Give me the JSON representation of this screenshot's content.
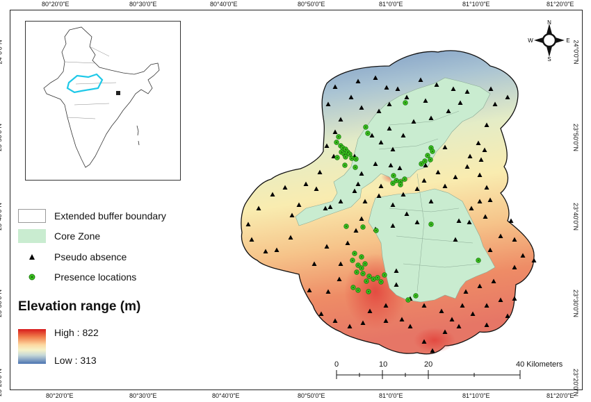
{
  "graticule": {
    "lon_labels": [
      "80°20'0\"E",
      "80°30'0\"E",
      "80°40'0\"E",
      "80°50'0\"E",
      "81°0'0\"E",
      "81°10'0\"E",
      "81°20'0\"E"
    ],
    "lat_labels": [
      "24°0'0\"N",
      "23°50'0\"N",
      "23°40'0\"N",
      "23°30'0\"N",
      "23°20'0\"N"
    ]
  },
  "legend": {
    "buffer_label": "Extended buffer boundary",
    "core_label": "Core Zone",
    "pseudo_label": "Pseudo absence",
    "presence_label": "Presence locations"
  },
  "elevation": {
    "title": "Elevation range (m)",
    "high_label": "High : 822",
    "low_label": "Low : 313",
    "high_color": "#d7191c",
    "low_color": "#4a73b0"
  },
  "scalebar": {
    "labels": [
      "0",
      "10",
      "20",
      "40 Kilometers"
    ]
  },
  "compass": {
    "n": "N",
    "s": "S",
    "e": "E",
    "w": "W"
  },
  "colors": {
    "core_zone": "#c9ecd0",
    "presence": "#39c41e",
    "pseudo": "#000000",
    "inset_highlight": "#1ec8e8"
  }
}
